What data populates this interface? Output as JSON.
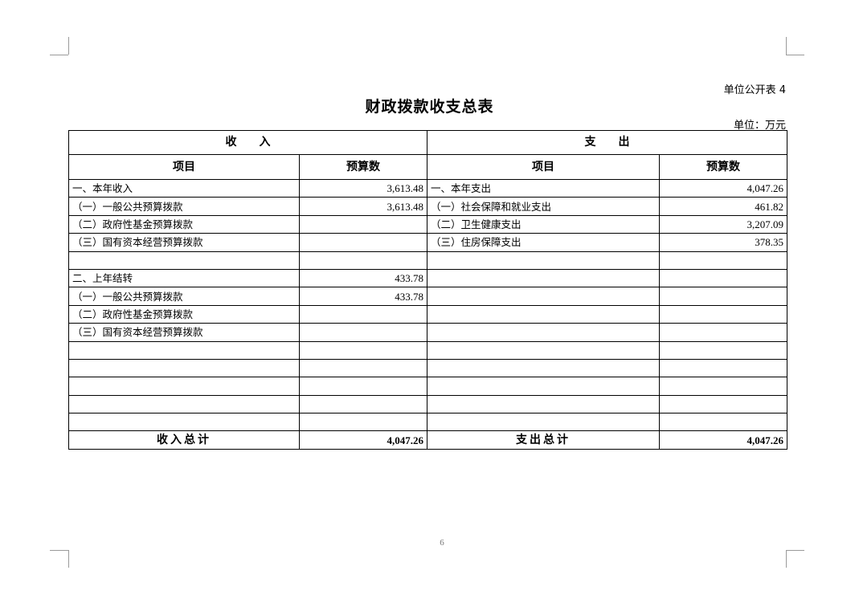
{
  "header": {
    "form_no": "单位公开表 4",
    "title": "财政拨款收支总表",
    "unit": "单位：万元"
  },
  "table": {
    "group_headers": [
      "收　　入",
      "支　　出"
    ],
    "column_headers": [
      "项目",
      "预算数",
      "项目",
      "预算数"
    ],
    "rows": [
      [
        "一、本年收入",
        "3,613.48",
        "一、本年支出",
        "4,047.26"
      ],
      [
        "（一）一般公共预算拨款",
        "3,613.48",
        "（一）社会保障和就业支出",
        "461.82"
      ],
      [
        "（二）政府性基金预算拨款",
        "",
        "（二）卫生健康支出",
        "3,207.09"
      ],
      [
        "（三）国有资本经营预算拨款",
        "",
        "（三）住房保障支出",
        "378.35"
      ],
      [
        "",
        "",
        "",
        ""
      ],
      [
        "二、上年结转",
        "433.78",
        "",
        ""
      ],
      [
        "（一）一般公共预算拨款",
        "433.78",
        "",
        ""
      ],
      [
        "（二）政府性基金预算拨款",
        "",
        "",
        ""
      ],
      [
        "（三）国有资本经营预算拨款",
        "",
        "",
        ""
      ],
      [
        "",
        "",
        "",
        ""
      ],
      [
        "",
        "",
        "",
        ""
      ],
      [
        "",
        "",
        "",
        ""
      ],
      [
        "",
        "",
        "",
        ""
      ],
      [
        "",
        "",
        "",
        ""
      ]
    ],
    "total": [
      "收入总计",
      "4,047.26",
      "支出总计",
      "4,047.26"
    ]
  },
  "footer": {
    "page_number": "6"
  }
}
